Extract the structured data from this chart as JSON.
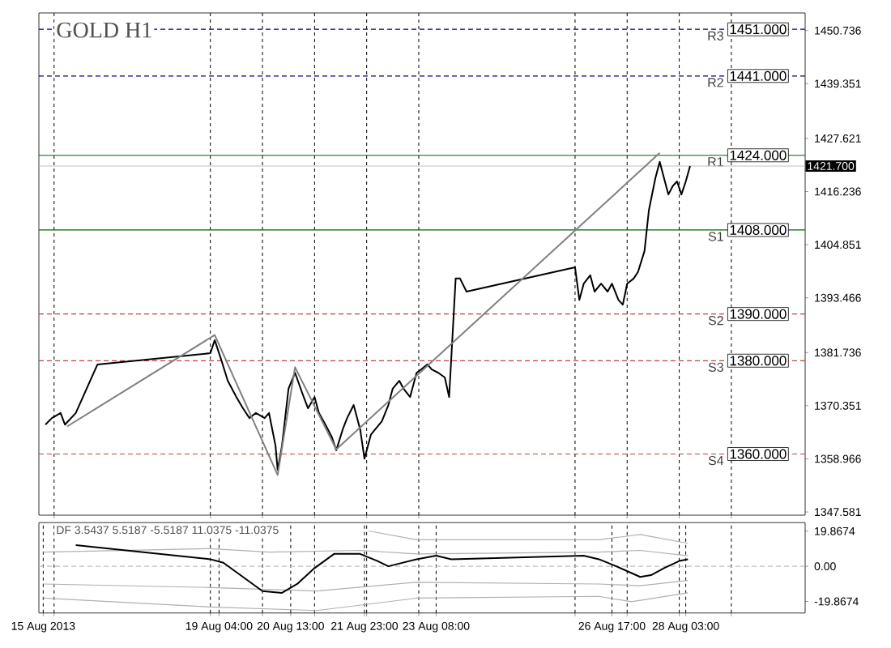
{
  "chart_data": [
    {
      "type": "line",
      "title": "GOLD H1",
      "xlim": [
        "2013-08-15T17:00",
        "2013-08-30T10:00"
      ],
      "ylim": [
        1346.9,
        1454.5
      ],
      "xticks": [
        {
          "value": "2013-08-16T00:00",
          "label": null
        },
        {
          "value": "2013-08-19T00:00",
          "label": null
        },
        {
          "value": "2013-08-20T00:00",
          "label": null
        },
        {
          "value": "2013-08-21T00:00",
          "label": null
        },
        {
          "value": "2013-08-22T00:00",
          "label": null
        },
        {
          "value": "2013-08-23T00:00",
          "label": null
        },
        {
          "value": "2013-08-26T00:00",
          "label": null
        },
        {
          "value": "2013-08-27T00:00",
          "label": null
        },
        {
          "value": "2013-08-28T00:00",
          "label": null
        },
        {
          "value": "2013-08-29T00:00",
          "label": null
        }
      ],
      "yticks": [
        1347.581,
        1358.966,
        1370.351,
        1381.736,
        1393.466,
        1404.851,
        1416.236,
        1427.621,
        1439.351,
        1450.736
      ],
      "tick_labels": "y",
      "grid": "x",
      "series": [
        {
          "color": "#000000",
          "x": [
            "2013-08-15T20:00",
            "2013-08-15T23:00",
            "2013-08-16T03:00",
            "2013-08-16T05:00",
            "2013-08-16T10:00",
            "2013-08-16T15:00",
            "2013-08-16T20:00",
            "2013-08-19T00:00",
            "2013-08-19T02:00",
            "2013-08-19T05:00",
            "2013-08-19T08:00",
            "2013-08-19T12:00",
            "2013-08-19T15:00",
            "2013-08-19T18:00",
            "2013-08-19T21:00",
            "2013-08-20T01:00",
            "2013-08-20T03:00",
            "2013-08-20T06:00",
            "2013-08-20T07:00",
            "2013-08-20T09:00",
            "2013-08-20T12:00",
            "2013-08-20T15:00",
            "2013-08-20T19:00",
            "2013-08-20T21:00",
            "2013-08-21T00:00",
            "2013-08-21T02:00",
            "2013-08-21T05:00",
            "2013-08-21T08:00",
            "2013-08-21T10:00",
            "2013-08-21T13:00",
            "2013-08-21T15:00",
            "2013-08-21T18:00",
            "2013-08-21T21:00",
            "2013-08-21T23:00",
            "2013-08-22T02:00",
            "2013-08-22T04:00",
            "2013-08-22T07:00",
            "2013-08-22T10:00",
            "2013-08-22T12:00",
            "2013-08-22T15:00",
            "2013-08-22T17:00",
            "2013-08-22T20:00",
            "2013-08-22T23:00",
            "2013-08-23T01:00",
            "2013-08-23T04:00",
            "2013-08-23T06:00",
            "2013-08-23T09:00",
            "2013-08-23T12:00",
            "2013-08-23T14:00",
            "2013-08-23T17:00",
            "2013-08-23T19:00",
            "2013-08-23T22:00",
            "2013-08-26T00:00",
            "2013-08-26T02:00",
            "2013-08-26T04:00",
            "2013-08-26T07:00",
            "2013-08-26T09:00",
            "2013-08-26T12:00",
            "2013-08-26T15:00",
            "2013-08-26T17:00",
            "2013-08-26T20:00",
            "2013-08-26T22:00",
            "2013-08-27T00:00",
            "2013-08-27T03:00",
            "2013-08-27T05:00",
            "2013-08-27T08:00",
            "2013-08-27T10:00",
            "2013-08-27T13:00",
            "2013-08-27T15:00",
            "2013-08-27T17:00",
            "2013-08-27T19:00",
            "2013-08-27T21:00",
            "2013-08-27T23:00",
            "2013-08-28T01:00",
            "2013-08-28T03:00",
            "2013-08-28T05:00"
          ],
          "values": [
            1366.3,
            1367.7,
            1368.8,
            1366.3,
            1368.8,
            1374.0,
            1379.2,
            1381.6,
            1384.4,
            1380.2,
            1375.7,
            1372.2,
            1369.8,
            1367.7,
            1368.8,
            1367.7,
            1368.8,
            1361.8,
            1356.6,
            1361.8,
            1374.0,
            1377.4,
            1372.2,
            1369.8,
            1372.2,
            1368.8,
            1366.3,
            1363.6,
            1360.8,
            1365.3,
            1367.7,
            1370.5,
            1365.3,
            1359.0,
            1364.2,
            1365.3,
            1367.0,
            1370.5,
            1374.0,
            1375.7,
            1374.0,
            1372.2,
            1377.4,
            1378.1,
            1379.2,
            1378.1,
            1377.4,
            1376.4,
            1372.2,
            1397.6,
            1397.6,
            1394.8,
            1400.0,
            1393.0,
            1396.5,
            1398.3,
            1394.8,
            1396.5,
            1394.8,
            1396.5,
            1393.0,
            1392.0,
            1396.5,
            1397.6,
            1399.0,
            1403.5,
            1412.2,
            1419.1,
            1422.6,
            1419.1,
            1415.6,
            1417.4,
            1418.4,
            1415.6,
            1418.4,
            1421.7
          ]
        },
        {
          "color": "#808080",
          "x": [
            "2013-08-16T06:00",
            "2013-08-19T02:00",
            "2013-08-20T07:00",
            "2013-08-20T15:00",
            "2013-08-21T10:00",
            "2013-08-27T15:00"
          ],
          "values": [
            1365.9,
            1385.5,
            1355.5,
            1378.6,
            1361.0,
            1424.5
          ]
        }
      ],
      "ref_lines": [
        {
          "axis": "y",
          "value": 1451,
          "label": "R3",
          "color": "#000080",
          "line_style": "dashed"
        },
        {
          "axis": "y",
          "value": 1441,
          "label": "R2",
          "color": "#000080",
          "line_style": "dashed"
        },
        {
          "axis": "y",
          "value": 1424,
          "label": "R1",
          "color": "#006400",
          "line_style": "solid"
        },
        {
          "axis": "y",
          "value": 1408,
          "label": "S1",
          "color": "#006400",
          "line_style": "solid"
        },
        {
          "axis": "y",
          "value": 1390,
          "label": "S2",
          "color": "#c04040",
          "line_style": "dashed"
        },
        {
          "axis": "y",
          "value": 1380,
          "label": "S3",
          "color": "#c04040",
          "line_style": "dashed"
        },
        {
          "axis": "y",
          "value": 1360,
          "label": "S4",
          "color": "#c04040",
          "line_style": "dashed"
        },
        {
          "axis": "y",
          "value": 1421.7,
          "color": "#c0c0c0",
          "line_style": "solid"
        }
      ],
      "annotations": [
        "1451.000",
        "1441.000",
        "1424.000",
        "1408.000",
        "1390.000",
        "1380.000",
        "1360.000",
        "1421.700"
      ]
    },
    {
      "type": "line",
      "title": "DF 3.5437 5.5187 -5.5187 11.0375 -11.0375",
      "xlim": [
        "2013-08-15T17:00",
        "2013-08-30T10:00"
      ],
      "ylim": [
        -26.4,
        24.7
      ],
      "xticks": [
        {
          "value": "2013-08-15T19:00",
          "label": "15 Aug 2013"
        },
        {
          "value": "2013-08-16T00:00",
          "label": null
        },
        {
          "value": "2013-08-19T00:00",
          "label": null
        },
        {
          "value": "2013-08-19T04:00",
          "label": "19 Aug 04:00"
        },
        {
          "value": "2013-08-20T00:00",
          "label": null
        },
        {
          "value": "2013-08-20T13:00",
          "label": "20 Aug 13:00"
        },
        {
          "value": "2013-08-21T00:00",
          "label": null
        },
        {
          "value": "2013-08-21T23:00",
          "label": "21 Aug 23:00"
        },
        {
          "value": "2013-08-22T00:00",
          "label": null
        },
        {
          "value": "2013-08-23T00:00",
          "label": null
        },
        {
          "value": "2013-08-23T08:00",
          "label": "23 Aug 08:00"
        },
        {
          "value": "2013-08-26T00:00",
          "label": null
        },
        {
          "value": "2013-08-26T17:00",
          "label": "26 Aug 17:00"
        },
        {
          "value": "2013-08-27T00:00",
          "label": null
        },
        {
          "value": "2013-08-28T00:00",
          "label": null
        },
        {
          "value": "2013-08-28T03:00",
          "label": "28 Aug 03:00"
        },
        {
          "value": "2013-08-29T00:00",
          "label": null
        }
      ],
      "yticks": [
        19.8674,
        {
          "value": 0,
          "label": "0.00"
        },
        -19.8674
      ],
      "grid": "x",
      "series": [
        {
          "color": "#b0b0b0",
          "x": [
            "2013-08-22T01:00",
            "2013-08-22T23:00",
            "2013-08-26T11:00",
            "2013-08-27T06:00",
            "2013-08-28T04:00"
          ],
          "values": [
            20,
            15,
            15,
            18,
            13
          ]
        },
        {
          "color": "#b0b0b0",
          "x": [
            "2013-08-15T19:00",
            "2013-08-19T00:00",
            "2013-08-20T03:00",
            "2013-08-21T21:00",
            "2013-08-22T23:00",
            "2013-08-26T11:00",
            "2013-08-27T06:00",
            "2013-08-28T04:00"
          ],
          "values": [
            8,
            10,
            8,
            9,
            7,
            8,
            9,
            6
          ]
        },
        {
          "color": "#b0b0b0",
          "x": [
            "2013-08-15T19:00",
            "2013-08-19T00:00",
            "2013-08-21T01:00",
            "2013-08-22T23:00",
            "2013-08-26T11:00",
            "2013-08-27T06:00",
            "2013-08-28T04:00"
          ],
          "values": [
            -10,
            -12,
            -14,
            -9,
            -10,
            -11,
            -8
          ]
        },
        {
          "color": "#b0b0b0",
          "x": [
            "2013-08-15T19:00",
            "2013-08-19T00:00",
            "2013-08-21T01:00",
            "2013-08-22T23:00",
            "2013-08-26T11:00",
            "2013-08-27T02:00",
            "2013-08-28T04:00"
          ],
          "values": [
            -18,
            -23,
            -25,
            -18,
            -17,
            -20,
            -15
          ]
        },
        {
          "color": "#000000",
          "x": [
            "2013-08-16T10:00",
            "2013-08-19T00:00",
            "2013-08-19T06:00",
            "2013-08-19T15:00",
            "2013-08-20T00:00",
            "2013-08-20T09:00",
            "2013-08-20T16:00",
            "2013-08-21T00:00",
            "2013-08-21T09:00",
            "2013-08-21T21:00",
            "2013-08-22T05:00",
            "2013-08-22T10:00",
            "2013-08-22T23:00",
            "2013-08-23T08:00",
            "2013-08-23T15:00",
            "2013-08-26T04:00",
            "2013-08-26T11:00",
            "2013-08-26T19:00",
            "2013-08-27T06:00",
            "2013-08-27T11:00",
            "2013-08-27T17:00",
            "2013-08-28T00:00",
            "2013-08-28T04:00"
          ],
          "values": [
            12,
            4,
            2,
            -6,
            -14,
            -15,
            -10,
            -1,
            7,
            7,
            3,
            0,
            4,
            6,
            4,
            6,
            4,
            0,
            -6,
            -5,
            -1,
            3,
            4
          ]
        }
      ],
      "ref_lines": [
        {
          "axis": "y",
          "value": 0,
          "color": "#c0c0c0",
          "line_style": "dashed"
        }
      ]
    }
  ]
}
